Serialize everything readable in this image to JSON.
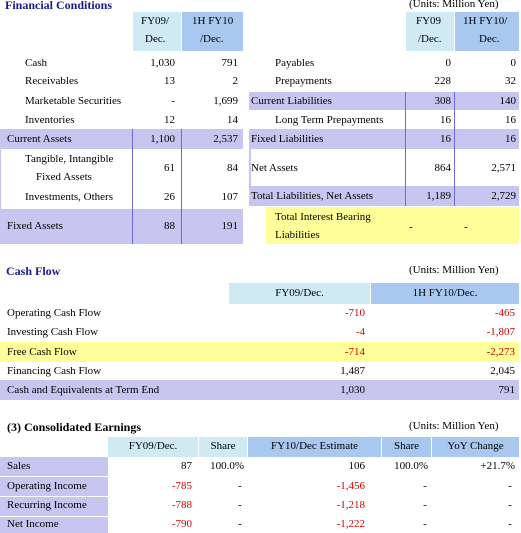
{
  "fc": {
    "title": "Financial Conditions",
    "units": "(Units:   Million Yen)",
    "left_headers": [
      "FY09/",
      "Dec.",
      "1H FY10",
      "/Dec."
    ],
    "right_headers": [
      "FY09",
      "/Dec.",
      "1H FY10/",
      "Dec."
    ],
    "left_rows": [
      {
        "label": "Cash",
        "a": "1,030",
        "b": "791"
      },
      {
        "label": "Receivables",
        "a": "13",
        "b": "2"
      },
      {
        "label": "Marketable Securities",
        "a": "-",
        "b": "1,699"
      },
      {
        "label": "Inventories",
        "a": "12",
        "b": "14"
      },
      {
        "label": "Current Assets",
        "a": "1,100",
        "b": "2,537"
      },
      {
        "label": "Tangible, Intangible",
        "label2": "Fixed Assets",
        "a": "61",
        "b": "84"
      },
      {
        "label": "Investments, Others",
        "a": "26",
        "b": "107"
      },
      {
        "label": "Fixed Assets",
        "a": "88",
        "b": "191"
      }
    ],
    "right_rows": [
      {
        "label": "Payables",
        "a": "0",
        "b": "0"
      },
      {
        "label": "Prepayments",
        "a": "228",
        "b": "32"
      },
      {
        "label": "Current Liabilities",
        "a": "308",
        "b": "140"
      },
      {
        "label": "Long Term Prepayments",
        "a": "16",
        "b": "16"
      },
      {
        "label": "Fixed Liabilities",
        "a": "16",
        "b": "16"
      },
      {
        "label": "Net Assets",
        "a": "864",
        "b": "2,571"
      },
      {
        "label": "Total Liabilities, Net Assets",
        "a": "1,189",
        "b": "2,729"
      },
      {
        "label": "Total Interest Bearing",
        "label2": "Liabilities",
        "a": "-",
        "b": "-"
      }
    ]
  },
  "cf": {
    "title": "Cash Flow",
    "units": "(Units:   Million Yen)",
    "headers": [
      "FY09/Dec.",
      "1H FY10/Dec."
    ],
    "rows": [
      {
        "label": "Operating Cash Flow",
        "a": "-710",
        "b": "-465"
      },
      {
        "label": "Investing Cash Flow",
        "a": "-4",
        "b": "-1,807"
      },
      {
        "label": "Free Cash Flow",
        "a": "-714",
        "b": "-2,273"
      },
      {
        "label": "Financing Cash Flow",
        "a": "1,487",
        "b": "2,045"
      },
      {
        "label": "Cash and Equivalents at Term End",
        "a": "1,030",
        "b": "791"
      }
    ]
  },
  "ce": {
    "title": "(3) Consolidated Earnings",
    "units": "(Units:   Million Yen)",
    "headers": [
      "FY09/Dec.",
      "Share",
      "FY10/Dec Estimate",
      "Share",
      "YoY Change"
    ],
    "rows": [
      {
        "label": "Sales",
        "a": "87",
        "s1": "100.0%",
        "b": "106",
        "s2": "100.0%",
        "yoy": "+21.7%"
      },
      {
        "label": "Operating Income",
        "a": "-785",
        "s1": "-",
        "b": "-1,456",
        "s2": "-",
        "yoy": "-"
      },
      {
        "label": "Recurring Income",
        "a": "-788",
        "s1": "-",
        "b": "-1,218",
        "s2": "-",
        "yoy": "-"
      },
      {
        "label": "Net Income",
        "a": "-790",
        "s1": "-",
        "b": "-1,222",
        "s2": "-",
        "yoy": "-"
      }
    ]
  }
}
